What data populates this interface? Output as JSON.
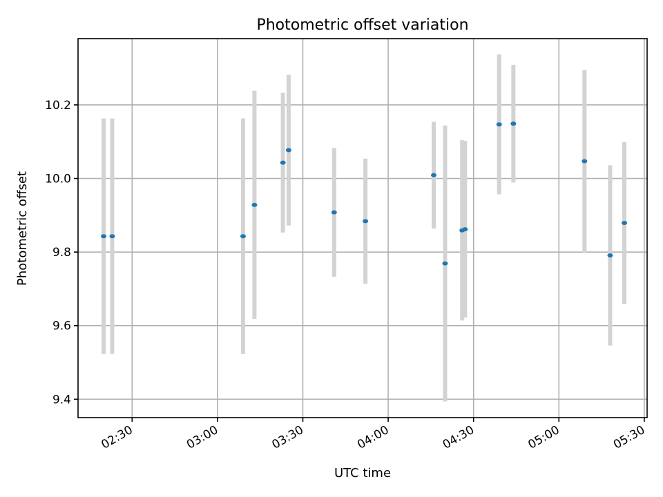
{
  "chart_data": {
    "type": "scatter",
    "title": "Photometric offset variation",
    "xlabel": "UTC time",
    "ylabel": "Photometric offset",
    "x_ticks": [
      "02:30",
      "03:00",
      "03:30",
      "04:00",
      "04:30",
      "05:00",
      "05:30"
    ],
    "y_ticks": [
      "9.4",
      "9.6",
      "9.8",
      "10.0",
      "10.2"
    ],
    "xlim": [
      "02:11",
      "05:31"
    ],
    "ylim": [
      9.35,
      10.38
    ],
    "grid": true,
    "series": [
      {
        "x": [
          "02:20",
          "02:23",
          "03:09",
          "03:13",
          "03:23",
          "03:25",
          "03:41",
          "03:52",
          "04:16",
          "04:20",
          "04:26",
          "04:27",
          "04:39",
          "04:44",
          "05:09",
          "05:18",
          "05:23"
        ],
        "y": [
          9.843,
          9.843,
          9.843,
          9.928,
          10.043,
          10.077,
          9.908,
          9.884,
          10.009,
          9.769,
          9.859,
          9.862,
          10.147,
          10.149,
          10.047,
          9.791,
          9.879
        ],
        "y_err": [
          0.32,
          0.32,
          0.32,
          0.31,
          0.19,
          0.205,
          0.175,
          0.17,
          0.145,
          0.375,
          0.245,
          0.24,
          0.19,
          0.16,
          0.248,
          0.245,
          0.22
        ]
      }
    ],
    "colors": {
      "points": "#1f77b4",
      "errorbars": "#d3d3d3"
    }
  }
}
